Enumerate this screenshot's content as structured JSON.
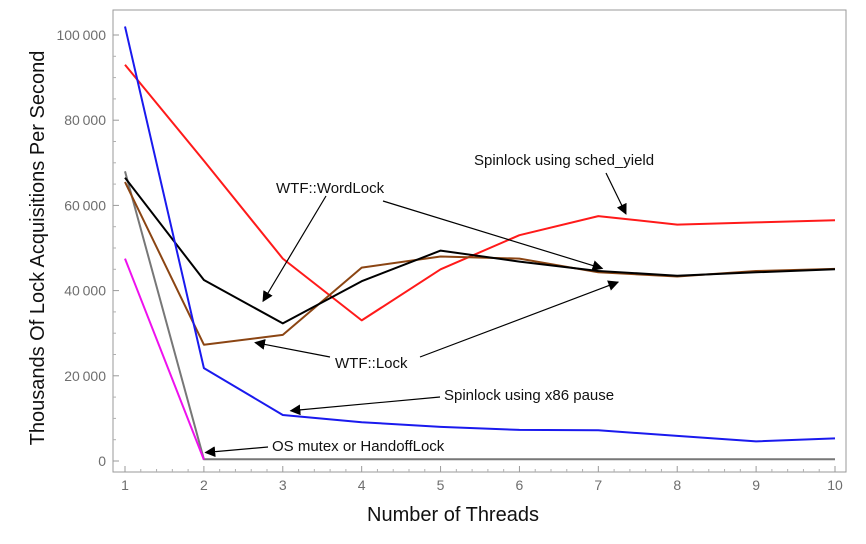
{
  "chart_data": {
    "type": "line",
    "xlabel": "Number of Threads",
    "ylabel": "Thousands Of Lock Acquisitions Per Second",
    "x": [
      1,
      2,
      3,
      4,
      5,
      6,
      7,
      8,
      9,
      10
    ],
    "xlim": [
      1,
      10
    ],
    "ylim": [
      0,
      105000
    ],
    "yticks": [
      0,
      20000,
      40000,
      60000,
      80000,
      100000
    ],
    "ytick_labels": [
      "0",
      "20 000",
      "40 000",
      "60 000",
      "80 000",
      "100 000"
    ],
    "xtick_labels": [
      "1",
      "2",
      "3",
      "4",
      "5",
      "6",
      "7",
      "8",
      "9",
      "10"
    ],
    "grid": false,
    "legend": "none",
    "series": [
      {
        "color": "#ff1a1a",
        "values": [
          93000,
          70500,
          47500,
          33000,
          45000,
          53000,
          57500,
          55500,
          56000,
          56500
        ]
      },
      {
        "color": "#1a1aee",
        "values": [
          102000,
          21800,
          10800,
          9100,
          8000,
          7300,
          7200,
          5900,
          4600,
          5300
        ]
      },
      {
        "color": "#000000",
        "values": [
          66500,
          42500,
          32300,
          42200,
          49400,
          46800,
          44600,
          43500,
          44300,
          45000
        ]
      },
      {
        "color": "#8b4513",
        "values": [
          65500,
          27300,
          29600,
          45400,
          48000,
          47500,
          44300,
          43300,
          44600,
          45100
        ]
      },
      {
        "color": "#ee11ee",
        "values": [
          47500,
          300,
          null,
          null,
          null,
          null,
          null,
          null,
          null,
          null
        ]
      },
      {
        "color": "#777777",
        "values": [
          68000,
          400,
          400,
          400,
          400,
          400,
          400,
          400,
          400,
          400
        ]
      }
    ],
    "annotations": [
      {
        "text": "Spinlock using sched_yield",
        "arrow_to": [
          7.35,
          58000
        ]
      },
      {
        "text": "WTF::WordLock",
        "arrow_to": [
          2.75,
          37500
        ],
        "arrow2_to": [
          7.05,
          45200
        ]
      },
      {
        "text": "WTF::Lock",
        "arrow_to": [
          2.65,
          27800
        ],
        "arrow2_to": [
          7.25,
          42000
        ]
      },
      {
        "text": "Spinlock using x86 pause",
        "arrow_to": [
          3.1,
          11800
        ]
      },
      {
        "text": "OS mutex or HandoffLock",
        "arrow_to": [
          2.02,
          2000
        ]
      }
    ]
  }
}
